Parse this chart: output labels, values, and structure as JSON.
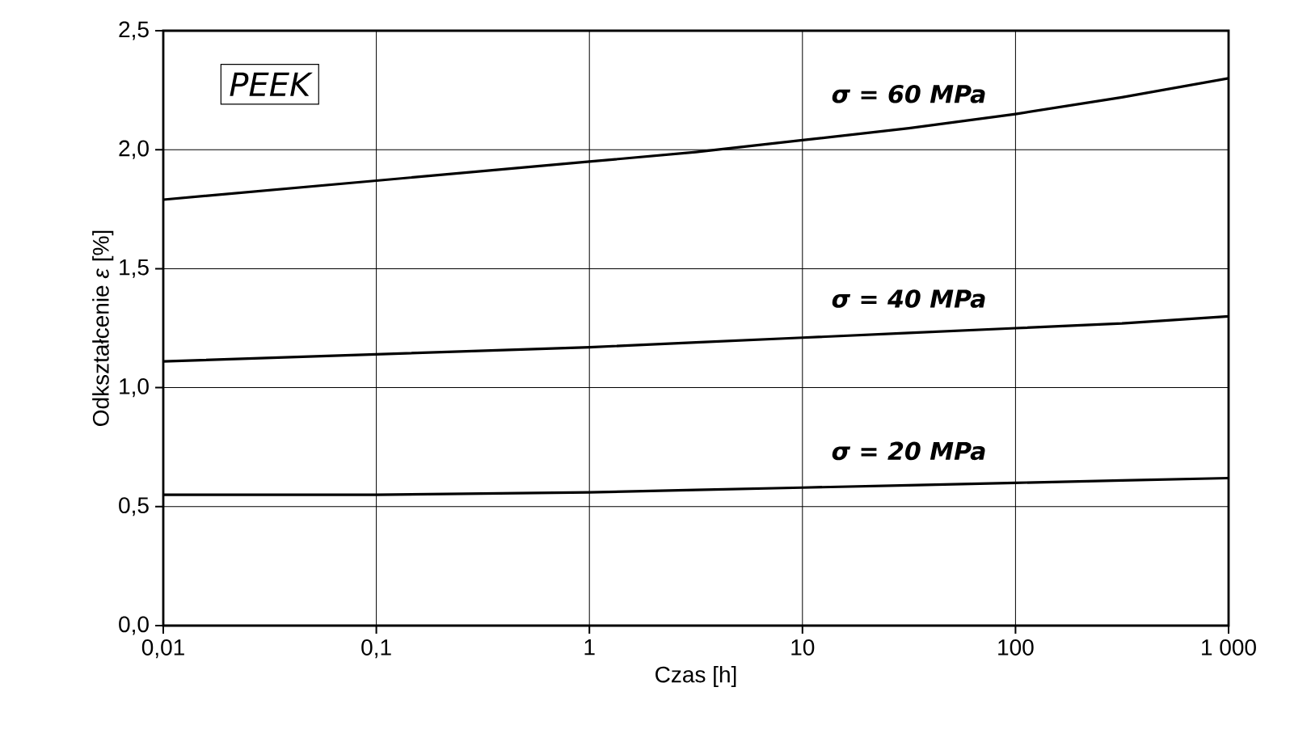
{
  "chart_data": {
    "type": "line",
    "xlabel": "Czas [h]",
    "ylabel": "Odkształcenie *ε* [%]",
    "x": [
      0.01,
      0.1,
      1,
      3.16,
      10,
      31.6,
      100,
      316,
      1000
    ],
    "series": [
      {
        "name": "σ = 60 MPa",
        "color": "#000000",
        "values": [
          1.79,
          1.87,
          1.95,
          1.99,
          2.04,
          2.09,
          2.15,
          2.22,
          2.3
        ]
      },
      {
        "name": "σ = 40 MPa",
        "color": "#000000",
        "values": [
          1.11,
          1.14,
          1.17,
          1.19,
          1.21,
          1.23,
          1.25,
          1.27,
          1.3
        ]
      },
      {
        "name": "σ = 20 MPa",
        "color": "#000000",
        "values": [
          0.55,
          0.55,
          0.56,
          0.57,
          0.58,
          0.59,
          0.6,
          0.61,
          0.62
        ]
      }
    ],
    "annotations": [
      "PEEK"
    ],
    "log": "x",
    "grid": true,
    "marker": "none",
    "line_style": "solid",
    "xlim": [
      0.01,
      1000
    ],
    "ylim": [
      0,
      2.5
    ],
    "xticks": [
      {
        "value": 0.01,
        "label": "0,01"
      },
      {
        "value": 0.1,
        "label": "0,1"
      },
      {
        "value": 1,
        "label": "1"
      },
      {
        "value": 10,
        "label": "10"
      },
      {
        "value": 100,
        "label": "100"
      },
      {
        "value": 1000,
        "label": "1 000"
      }
    ],
    "yticks": [
      {
        "value": 0,
        "label": "0,0"
      },
      {
        "value": 0.5,
        "label": "0,5"
      },
      {
        "value": 1.0,
        "label": "1,0"
      },
      {
        "value": 1.5,
        "label": "1,5"
      },
      {
        "value": 2.0,
        "label": "2,0"
      },
      {
        "value": 2.5,
        "label": "2,5"
      }
    ]
  }
}
